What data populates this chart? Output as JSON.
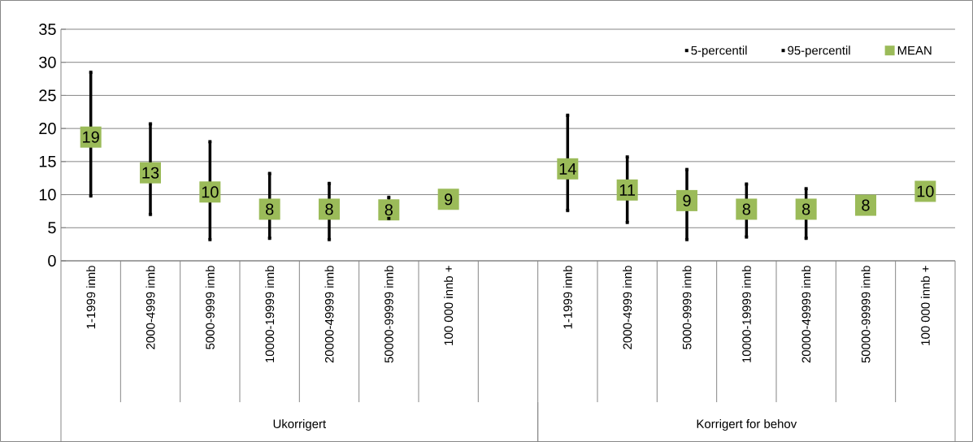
{
  "chart_data": {
    "type": "scatter",
    "categories": [
      "1-1999 innb",
      "2000-4999 innb",
      "5000-9999 innb",
      "10000-19999 innb",
      "20000-49999 innb",
      "50000-99999 innb",
      "100 000 innb +",
      null,
      "1-1999 innb",
      "2000-4999 innb",
      "5000-9999 innb",
      "10000-19999 innb",
      "20000-49999 innb",
      "50000-99999 innb",
      "100 000 innb +"
    ],
    "series": [
      {
        "name": "5-percentil",
        "color": "#000000",
        "values": [
          9.8,
          7.0,
          3.2,
          3.4,
          3.2,
          6.4,
          null,
          null,
          7.6,
          5.8,
          3.2,
          3.6,
          3.4,
          null,
          null
        ]
      },
      {
        "name": "95-percentil",
        "color": "#000000",
        "values": [
          28.5,
          20.7,
          18.0,
          13.2,
          11.7,
          9.6,
          null,
          null,
          22.0,
          15.7,
          13.8,
          11.6,
          10.9,
          null,
          null
        ]
      },
      {
        "name": "MEAN",
        "color": "#9bbb59",
        "marker": "square",
        "values": [
          18.7,
          13.3,
          10.4,
          7.8,
          7.8,
          7.7,
          9.3,
          null,
          13.9,
          10.7,
          9.1,
          7.8,
          7.8,
          8.4,
          10.5
        ],
        "value_labels": [
          "19",
          "13",
          "10",
          "8",
          "8",
          "8",
          "9",
          null,
          "14",
          "11",
          "9",
          "8",
          "8",
          "8",
          "10"
        ]
      }
    ],
    "annotations": [
      "Ukorrigert",
      "Korrigert for behov"
    ],
    "ylim": [
      0,
      35
    ],
    "yticks": [
      0,
      5,
      10,
      15,
      20,
      25,
      30,
      35
    ],
    "grid": "y",
    "legend": "top right"
  }
}
